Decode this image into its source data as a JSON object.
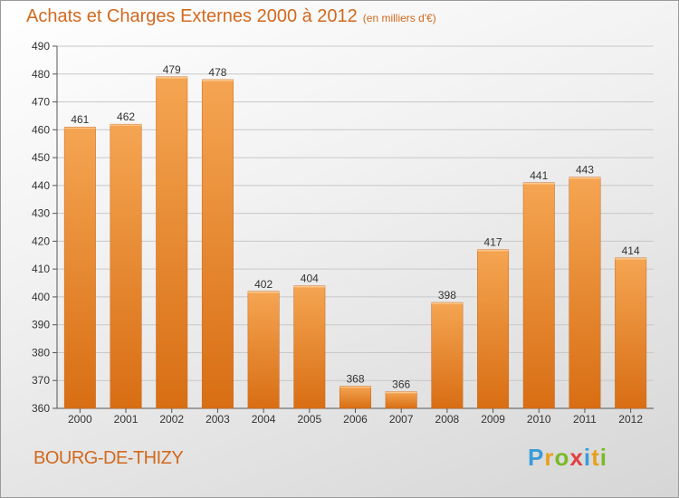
{
  "chart_data": {
    "type": "bar",
    "title": "Achats et Charges Externes 2000 à 2012",
    "subtitle": "(en milliers d'€)",
    "categories": [
      "2000",
      "2001",
      "2002",
      "2003",
      "2004",
      "2005",
      "2006",
      "2007",
      "2008",
      "2009",
      "2010",
      "2011",
      "2012"
    ],
    "values": [
      461,
      462,
      479,
      478,
      402,
      404,
      368,
      366,
      398,
      417,
      441,
      443,
      414
    ],
    "ylim": [
      360,
      490
    ],
    "yticks": [
      360,
      370,
      380,
      390,
      400,
      410,
      420,
      430,
      440,
      450,
      460,
      470,
      480,
      490
    ],
    "grid": true,
    "legend": "none",
    "bar_color": "#e8801e"
  },
  "commune": "BOURG-DE-THIZY",
  "logo": {
    "letters": [
      "P",
      "r",
      "o",
      "x",
      "i",
      "t",
      "i"
    ],
    "colors": [
      "#3a9bd9",
      "#e8a01e",
      "#7ab929",
      "#e04040",
      "#3a9bd9",
      "#e8a01e",
      "#7ab929"
    ]
  }
}
